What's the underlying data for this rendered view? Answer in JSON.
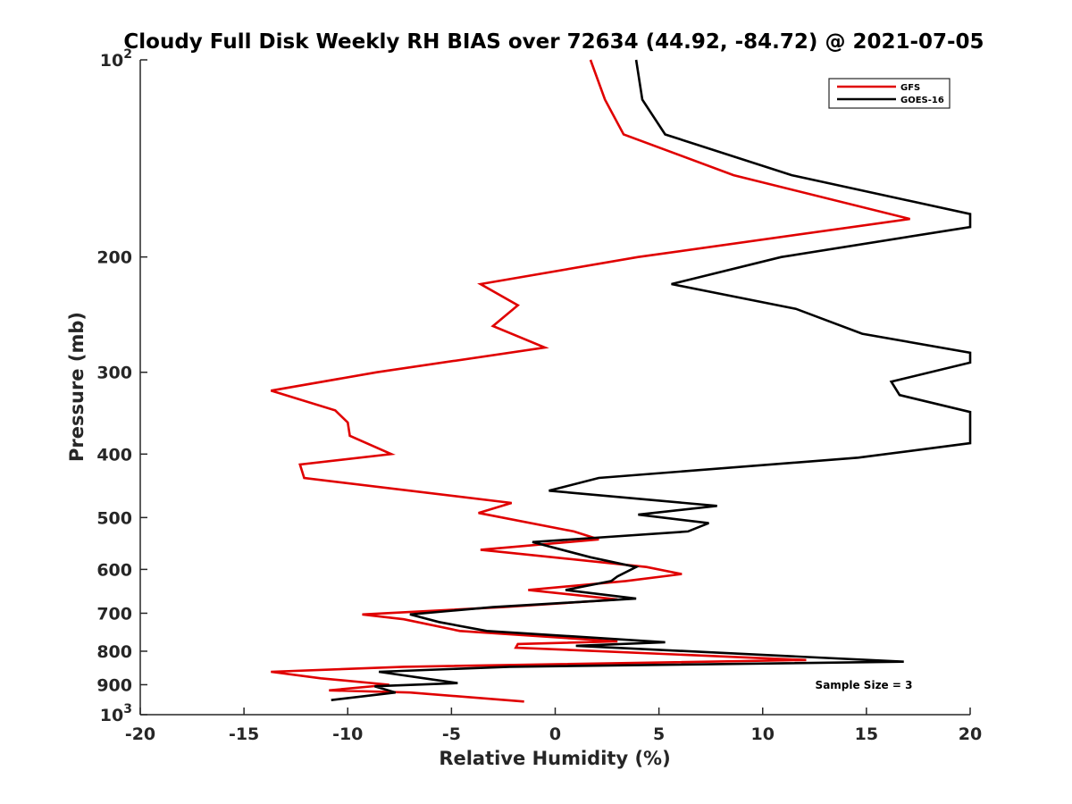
{
  "chart_data": {
    "type": "line",
    "title": "Cloudy Full Disk Weekly RH BIAS over 72634 (44.92, -84.72) @ 2021-07-05",
    "xlabel": "Relative Humidity (%)",
    "ylabel": "Pressure (mb)",
    "xlim": [
      -20,
      20
    ],
    "ylim": [
      100,
      1000
    ],
    "y_scale": "log",
    "y_reversed": true,
    "grid": false,
    "legend_position": "top-right",
    "x_ticks": [
      "-20",
      "-15",
      "-10",
      "-5",
      "0",
      "5",
      "10",
      "15",
      "20"
    ],
    "y_ticks": [
      {
        "value": 200,
        "label": "200"
      },
      {
        "value": 300,
        "label": "300"
      },
      {
        "value": 400,
        "label": "400"
      },
      {
        "value": 500,
        "label": "500"
      },
      {
        "value": 600,
        "label": "600"
      },
      {
        "value": 700,
        "label": "700"
      },
      {
        "value": 800,
        "label": "800"
      },
      {
        "value": 900,
        "label": "900"
      }
    ],
    "y_tick_pow_top": {
      "base": "10",
      "exp": "2"
    },
    "y_tick_pow_bottom": {
      "base": "10",
      "exp": "3"
    },
    "annotation": "Sample Size = 3",
    "series": [
      {
        "name": "GFS",
        "color": "#e00000",
        "points": [
          [
            1.7,
            100
          ],
          [
            2.4,
            115
          ],
          [
            3.3,
            130
          ],
          [
            8.6,
            150
          ],
          [
            17.1,
            175
          ],
          [
            4.0,
            200
          ],
          [
            -3.6,
            220
          ],
          [
            -1.8,
            237
          ],
          [
            -3.0,
            255
          ],
          [
            -0.5,
            275
          ],
          [
            -8.6,
            300
          ],
          [
            -13.7,
            320
          ],
          [
            -10.6,
            343
          ],
          [
            -10.0,
            358
          ],
          [
            -9.9,
            375
          ],
          [
            -7.9,
            400
          ],
          [
            -12.3,
            415
          ],
          [
            -12.1,
            435
          ],
          [
            -2.1,
            475
          ],
          [
            -3.7,
            492
          ],
          [
            0.9,
            525
          ],
          [
            2.1,
            540
          ],
          [
            -3.6,
            560
          ],
          [
            4.4,
            595
          ],
          [
            6.1,
            610
          ],
          [
            3.4,
            625
          ],
          [
            -1.3,
            645
          ],
          [
            3.0,
            667
          ],
          [
            -2.5,
            685
          ],
          [
            -9.3,
            703
          ],
          [
            -7.3,
            715
          ],
          [
            -4.6,
            745
          ],
          [
            3.0,
            773
          ],
          [
            -1.8,
            780
          ],
          [
            -1.9,
            790
          ],
          [
            12.1,
            825
          ],
          [
            -7.3,
            845
          ],
          [
            -13.7,
            860
          ],
          [
            -11.3,
            880
          ],
          [
            -8.0,
            900
          ],
          [
            -10.9,
            918
          ],
          [
            -7.0,
            925
          ],
          [
            -1.5,
            955
          ]
        ]
      },
      {
        "name": "GOES-16",
        "color": "#000000",
        "points": [
          [
            3.9,
            100
          ],
          [
            4.2,
            115
          ],
          [
            5.3,
            130
          ],
          [
            11.4,
            150
          ],
          [
            20.0,
            172
          ],
          [
            20.0,
            180
          ],
          [
            10.9,
            200
          ],
          [
            5.6,
            220
          ],
          [
            11.6,
            240
          ],
          [
            14.8,
            262
          ],
          [
            20.0,
            280
          ],
          [
            20.0,
            290
          ],
          [
            16.2,
            310
          ],
          [
            16.6,
            325
          ],
          [
            20.0,
            345
          ],
          [
            20.0,
            385
          ],
          [
            14.6,
            405
          ],
          [
            2.1,
            435
          ],
          [
            -0.3,
            455
          ],
          [
            7.8,
            480
          ],
          [
            4.0,
            495
          ],
          [
            7.4,
            510
          ],
          [
            6.4,
            525
          ],
          [
            -1.1,
            545
          ],
          [
            1.7,
            575
          ],
          [
            3.9,
            595
          ],
          [
            3.0,
            615
          ],
          [
            2.7,
            625
          ],
          [
            0.5,
            645
          ],
          [
            3.9,
            665
          ],
          [
            -3.0,
            685
          ],
          [
            -7.0,
            703
          ],
          [
            -5.6,
            722
          ],
          [
            -3.3,
            745
          ],
          [
            5.3,
            775
          ],
          [
            1.0,
            785
          ],
          [
            16.8,
            830
          ],
          [
            -2.2,
            845
          ],
          [
            -8.5,
            860
          ],
          [
            -4.7,
            895
          ],
          [
            -8.7,
            905
          ],
          [
            -7.7,
            925
          ],
          [
            -10.8,
            950
          ]
        ]
      }
    ]
  }
}
